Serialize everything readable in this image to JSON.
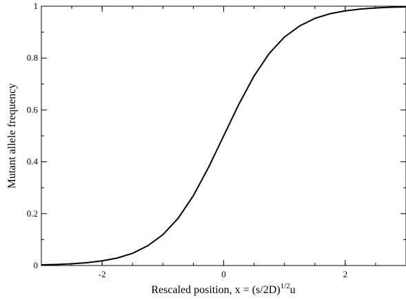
{
  "chart_data": {
    "type": "line",
    "title": "",
    "xlabel": {
      "main": "Rescaled position, x = (s/2D)",
      "superscript": "1/2",
      "suffix": "u"
    },
    "ylabel": "Mutant allele frequency",
    "xlim": [
      -3,
      3
    ],
    "ylim": [
      0,
      1
    ],
    "x_ticks": [
      -2,
      0,
      2
    ],
    "x_tick_labels": [
      "-2",
      "0",
      "2"
    ],
    "x_minor_ticks": [
      -3,
      -2.5,
      -2,
      -1.5,
      -1,
      -0.5,
      0,
      0.5,
      1,
      1.5,
      2,
      2.5,
      3
    ],
    "y_ticks": [
      0,
      0.2,
      0.4,
      0.6,
      0.8,
      1
    ],
    "y_tick_labels": [
      "0",
      "0.2",
      "0.4",
      "0.6",
      "0.8",
      "1"
    ],
    "y_minor_ticks": [
      0.1,
      0.3,
      0.5,
      0.7,
      0.9
    ],
    "grid": false,
    "legend": "none",
    "series": [
      {
        "color": "#000000",
        "x": [
          -3,
          -2.75,
          -2.5,
          -2.25,
          -2,
          -1.75,
          -1.5,
          -1.25,
          -1,
          -0.75,
          -0.5,
          -0.25,
          0,
          0.25,
          0.5,
          0.75,
          1,
          1.25,
          1.5,
          1.75,
          2,
          2.25,
          2.5,
          2.75,
          3
        ],
        "y": [
          0.0025,
          0.0041,
          0.0067,
          0.011,
          0.018,
          0.029,
          0.047,
          0.076,
          0.119,
          0.182,
          0.269,
          0.378,
          0.5,
          0.622,
          0.731,
          0.818,
          0.881,
          0.924,
          0.953,
          0.971,
          0.982,
          0.989,
          0.9933,
          0.9959,
          0.9975
        ]
      }
    ]
  }
}
